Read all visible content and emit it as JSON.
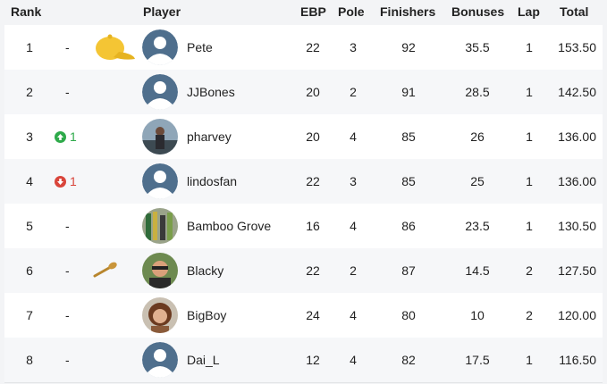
{
  "columns": {
    "rank": "Rank",
    "player": "Player",
    "ebp": "EBP",
    "pole": "Pole",
    "finishers": "Finishers",
    "bonuses": "Bonuses",
    "lap": "Lap",
    "total": "Total"
  },
  "rows": [
    {
      "rank": "1",
      "change_dir": "none",
      "change": "-",
      "badge": "cap-icon",
      "avatar": "default-avatar",
      "name": "Pete",
      "ebp": "22",
      "pole": "3",
      "finishers": "92",
      "bonuses": "35.5",
      "lap": "1",
      "total": "153.50"
    },
    {
      "rank": "2",
      "change_dir": "none",
      "change": "-",
      "badge": "",
      "avatar": "default-avatar",
      "name": "JJBones",
      "ebp": "20",
      "pole": "2",
      "finishers": "91",
      "bonuses": "28.5",
      "lap": "1",
      "total": "142.50"
    },
    {
      "rank": "3",
      "change_dir": "up",
      "change": "1",
      "badge": "",
      "avatar": "photo-avatar",
      "name": "pharvey",
      "ebp": "20",
      "pole": "4",
      "finishers": "85",
      "bonuses": "26",
      "lap": "1",
      "total": "136.00"
    },
    {
      "rank": "4",
      "change_dir": "down",
      "change": "1",
      "badge": "",
      "avatar": "default-avatar",
      "name": "lindosfan",
      "ebp": "22",
      "pole": "3",
      "finishers": "85",
      "bonuses": "25",
      "lap": "1",
      "total": "136.00"
    },
    {
      "rank": "5",
      "change_dir": "none",
      "change": "-",
      "badge": "",
      "avatar": "photo-avatar",
      "name": "Bamboo Grove",
      "ebp": "16",
      "pole": "4",
      "finishers": "86",
      "bonuses": "23.5",
      "lap": "1",
      "total": "130.50"
    },
    {
      "rank": "6",
      "change_dir": "none",
      "change": "-",
      "badge": "spoon-icon",
      "avatar": "photo-avatar",
      "name": "Blacky",
      "ebp": "22",
      "pole": "2",
      "finishers": "87",
      "bonuses": "14.5",
      "lap": "2",
      "total": "127.50"
    },
    {
      "rank": "7",
      "change_dir": "none",
      "change": "-",
      "badge": "",
      "avatar": "photo-avatar",
      "name": "BigBoy",
      "ebp": "24",
      "pole": "4",
      "finishers": "80",
      "bonuses": "10",
      "lap": "2",
      "total": "120.00"
    },
    {
      "rank": "8",
      "change_dir": "none",
      "change": "-",
      "badge": "",
      "avatar": "default-avatar",
      "name": "Dai_L",
      "ebp": "12",
      "pole": "4",
      "finishers": "82",
      "bonuses": "17.5",
      "lap": "1",
      "total": "116.50"
    }
  ],
  "colors": {
    "up": "#2eaa4a",
    "down": "#d9453b",
    "avatar_default": "#4f6f8d",
    "cap": "#f4c534"
  }
}
